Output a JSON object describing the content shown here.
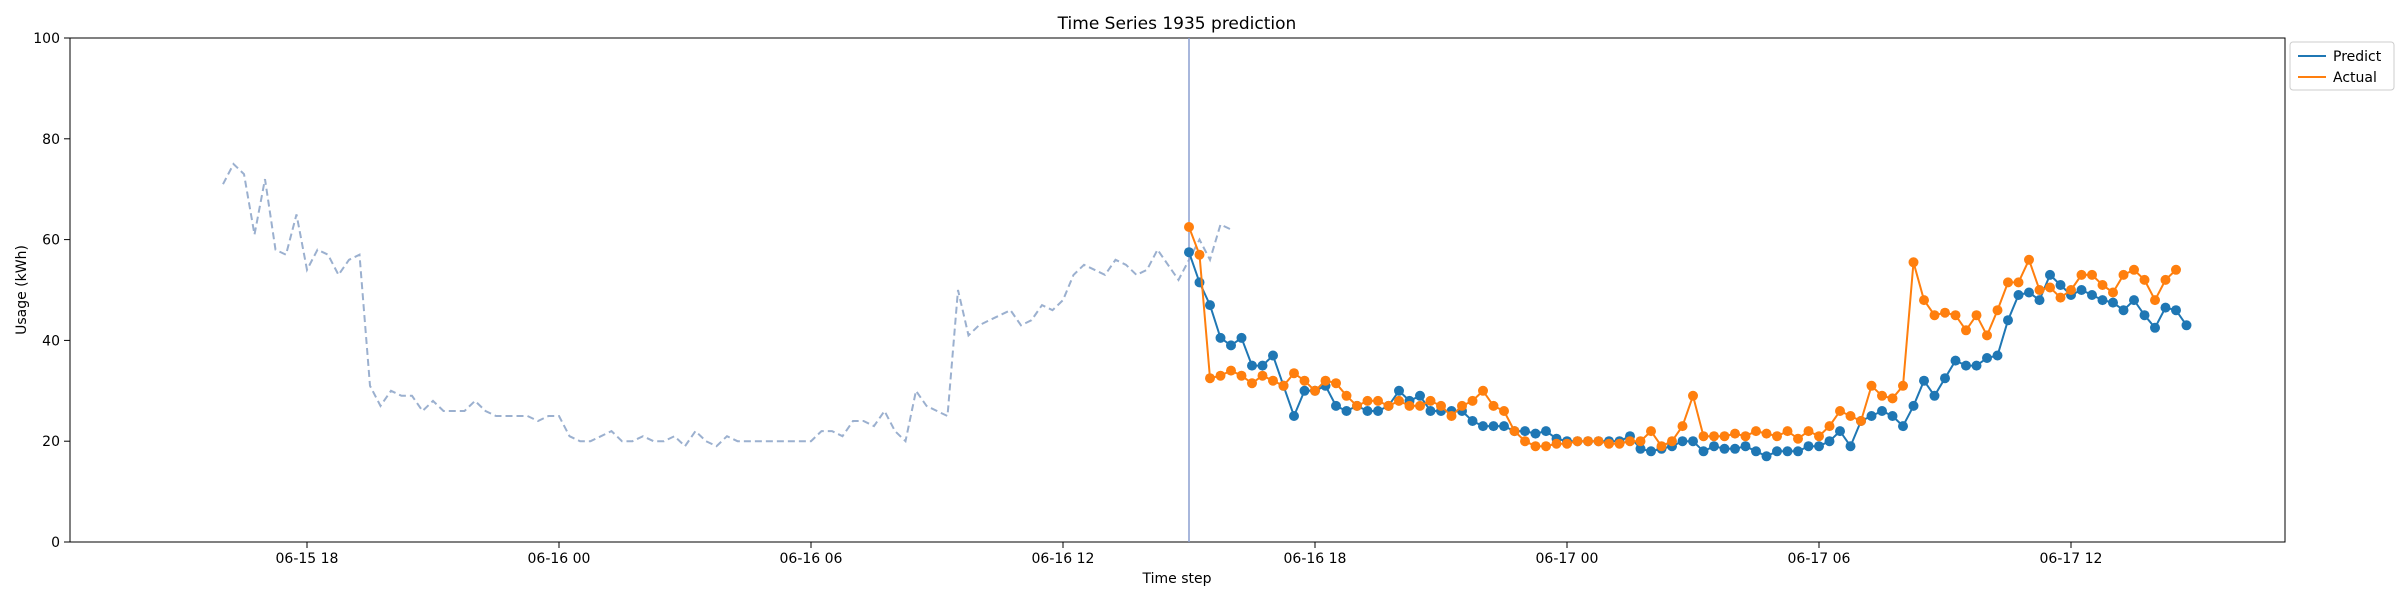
{
  "chart_data": {
    "type": "line",
    "title": "Time Series 1935 prediction",
    "xlabel": "Time step",
    "ylabel": "Usage (kWh)",
    "ylim": [
      0,
      100
    ],
    "yticks": [
      0,
      20,
      40,
      60,
      80,
      100
    ],
    "x_axis": {
      "start": "06-15 13:40",
      "step_minutes": 15
    },
    "xticks": [
      {
        "label": "06-15 18",
        "time": "06-15 18:00"
      },
      {
        "label": "06-16 00",
        "time": "06-16 00:00"
      },
      {
        "label": "06-16 06",
        "time": "06-16 06:00"
      },
      {
        "label": "06-16 12",
        "time": "06-16 12:00"
      },
      {
        "label": "06-16 18",
        "time": "06-16 18:00"
      },
      {
        "label": "06-17 00",
        "time": "06-17 00:00"
      },
      {
        "label": "06-17 06",
        "time": "06-17 06:00"
      },
      {
        "label": "06-17 12",
        "time": "06-17 12:00"
      }
    ],
    "history": {
      "start": "06-15 16:00",
      "color": "#9bb0cf",
      "values": [
        71,
        75,
        73,
        61,
        72,
        58,
        57,
        65,
        54,
        58,
        57,
        53,
        56,
        57,
        31,
        27,
        30,
        29,
        29,
        26,
        28,
        26,
        26,
        26,
        28,
        26,
        25,
        25,
        25,
        25,
        24,
        25,
        25,
        21,
        20,
        20,
        21,
        22,
        20,
        20,
        21,
        20,
        20,
        21,
        19,
        22,
        20,
        19,
        21,
        20,
        20,
        20,
        20,
        20,
        20,
        20,
        20,
        22,
        22,
        21,
        24,
        24,
        23,
        26,
        22,
        20,
        30,
        27,
        26,
        25,
        50,
        41,
        43,
        44,
        45,
        46,
        43,
        44,
        47,
        46,
        48,
        53,
        55,
        54,
        53,
        56,
        55,
        53,
        54,
        58,
        55,
        52,
        56,
        60,
        56,
        63,
        62
      ]
    },
    "forecast_start": "06-16 15:00",
    "series": [
      {
        "name": "Predict",
        "color": "#1f77b4",
        "start": "06-16 15:00",
        "values": [
          57.5,
          51.5,
          47,
          40.5,
          39,
          40.5,
          35,
          35,
          37,
          31,
          25,
          30,
          30,
          31,
          27,
          26,
          27,
          26,
          26,
          27,
          30,
          28,
          29,
          26,
          26,
          26,
          26,
          24,
          23,
          23,
          23,
          22,
          22,
          21.5,
          22,
          20.5,
          20,
          20,
          20,
          20,
          20,
          20,
          21,
          18.5,
          18,
          18.5,
          19,
          20,
          20,
          18,
          19,
          18.5,
          18.5,
          19,
          18,
          17,
          18,
          18,
          18,
          19,
          19,
          20,
          22,
          19,
          24,
          25,
          26,
          25,
          23,
          27,
          32,
          29,
          32.5,
          36,
          35,
          35,
          36.5,
          37,
          44,
          49,
          49.5,
          48,
          53,
          51,
          49,
          50,
          49,
          48,
          47.5,
          46,
          48,
          45,
          42.5,
          46.5,
          46,
          43
        ]
      },
      {
        "name": "Actual",
        "color": "#ff7f0e",
        "start": "06-16 15:00",
        "values": [
          62.5,
          57,
          32.5,
          33,
          34,
          33,
          31.5,
          33,
          32,
          31,
          33.5,
          32,
          30,
          32,
          31.5,
          29,
          27,
          28,
          28,
          27,
          28,
          27,
          27,
          28,
          27,
          25,
          27,
          28,
          30,
          27,
          26,
          22,
          20,
          19,
          19,
          19.5,
          19.5,
          20,
          20,
          20,
          19.5,
          19.5,
          20,
          20,
          22,
          19,
          20,
          23,
          29,
          21,
          21,
          21,
          21.5,
          21,
          22,
          21.5,
          21,
          22,
          20.5,
          22,
          21,
          23,
          26,
          25,
          24,
          31,
          29,
          28.5,
          31,
          55.5,
          48,
          45,
          45.5,
          45,
          42,
          45,
          41,
          46,
          51.5,
          51.5,
          56,
          50,
          50.5,
          48.5,
          50,
          53,
          53,
          51,
          49.5,
          53,
          54,
          52,
          48,
          52,
          54
        ]
      }
    ],
    "legend": {
      "position": "top-right",
      "entries": [
        "Predict",
        "Actual"
      ]
    },
    "grid": false
  }
}
